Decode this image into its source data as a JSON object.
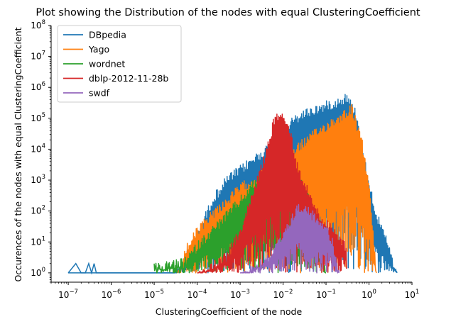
{
  "chart_data": {
    "type": "line",
    "title": "Plot showing the Distribution of the nodes with equal ClusteringCoefficient",
    "xlabel": "ClusteringCoefficient of the node",
    "ylabel": "Occurences of the nodes with equal ClusteringCoefficient",
    "xscale": "log",
    "yscale": "log",
    "xlim": [
      4e-08,
      10
    ],
    "ylim": [
      0.5,
      100000000
    ],
    "xticks": [
      {
        "value": 1e-07,
        "base": "10",
        "exp": "−7"
      },
      {
        "value": 1e-06,
        "base": "10",
        "exp": "−6"
      },
      {
        "value": 1e-05,
        "base": "10",
        "exp": "−5"
      },
      {
        "value": 0.0001,
        "base": "10",
        "exp": "−4"
      },
      {
        "value": 0.001,
        "base": "10",
        "exp": "−3"
      },
      {
        "value": 0.01,
        "base": "10",
        "exp": "−2"
      },
      {
        "value": 0.1,
        "base": "10",
        "exp": "−1"
      },
      {
        "value": 1,
        "base": "10",
        "exp": "0"
      },
      {
        "value": 10,
        "base": "10",
        "exp": "1"
      }
    ],
    "yticks": [
      {
        "value": 1,
        "base": "10",
        "exp": "0"
      },
      {
        "value": 10,
        "base": "10",
        "exp": "1"
      },
      {
        "value": 100,
        "base": "10",
        "exp": "2"
      },
      {
        "value": 1000,
        "base": "10",
        "exp": "3"
      },
      {
        "value": 10000,
        "base": "10",
        "exp": "4"
      },
      {
        "value": 100000,
        "base": "10",
        "exp": "5"
      },
      {
        "value": 1000000,
        "base": "10",
        "exp": "6"
      },
      {
        "value": 10000000,
        "base": "10",
        "exp": "7"
      },
      {
        "value": 100000000,
        "base": "10",
        "exp": "8"
      }
    ],
    "grid": false,
    "legend_position": "top-left",
    "series": [
      {
        "name": "DBpedia",
        "color": "#1f77b4",
        "envelope": {
          "x": [
            1e-07,
            3e-05,
            0.0001,
            0.00022,
            0.0005,
            0.001,
            0.003,
            0.008,
            0.015,
            0.03,
            0.07,
            0.12,
            0.2,
            0.3,
            0.5,
            0.8,
            1.5,
            3,
            4.5
          ],
          "y": [
            1,
            1,
            20,
            300,
            1500,
            3000,
            10000,
            30000,
            100000,
            200000,
            300000,
            400000,
            500000,
            700000,
            200000,
            5000,
            100,
            8,
            1
          ]
        },
        "sparse_points": {
          "x": [
            1e-07,
            1.5e-07,
            2e-07,
            2.5e-07,
            3e-07,
            3.5e-07,
            4e-07,
            4.5e-07,
            7e-07,
            1e-06,
            3e-06,
            1e-05,
            3e-05
          ],
          "y": [
            1,
            2,
            1,
            1,
            2,
            1,
            2,
            1,
            1,
            1,
            1,
            1,
            1
          ]
        }
      },
      {
        "name": "Yago",
        "color": "#ff7f0e",
        "envelope": {
          "x": [
            3.5e-05,
            6e-05,
            0.0001,
            0.0002,
            0.0005,
            0.001,
            0.003,
            0.01,
            0.02,
            0.05,
            0.1,
            0.2,
            0.4,
            0.7,
            1.0,
            1.5
          ],
          "y": [
            1,
            10,
            30,
            100,
            300,
            800,
            2000,
            5000,
            15000,
            40000,
            80000,
            150000,
            300000,
            20000,
            1000,
            1
          ]
        }
      },
      {
        "name": "wordnet",
        "color": "#2ca02c",
        "envelope": {
          "x": [
            1e-05,
            5e-05,
            0.0001,
            0.0003,
            0.001,
            0.002,
            0.004,
            0.008,
            0.015,
            0.03,
            0.06,
            0.1
          ],
          "y": [
            2,
            3,
            10,
            50,
            300,
            1000,
            3000,
            5000,
            3000,
            800,
            100,
            1
          ]
        }
      },
      {
        "name": "dblp-2012-11-28b",
        "color": "#d62728",
        "envelope": {
          "x": [
            0.0001,
            0.0005,
            0.001,
            0.002,
            0.004,
            0.006,
            0.008,
            0.01,
            0.015,
            0.02,
            0.04,
            0.07,
            0.15,
            0.3
          ],
          "y": [
            1,
            5,
            30,
            500,
            10000,
            100000,
            200000,
            150000,
            50000,
            5000,
            500,
            100,
            30,
            10
          ]
        }
      },
      {
        "name": "swdf",
        "color": "#9467bd",
        "envelope": {
          "x": [
            0.001,
            0.002,
            0.005,
            0.01,
            0.02,
            0.03,
            0.05,
            0.1,
            0.15,
            0.2
          ],
          "y": [
            1,
            2,
            5,
            20,
            150,
            200,
            100,
            50,
            10,
            1
          ]
        }
      }
    ]
  }
}
